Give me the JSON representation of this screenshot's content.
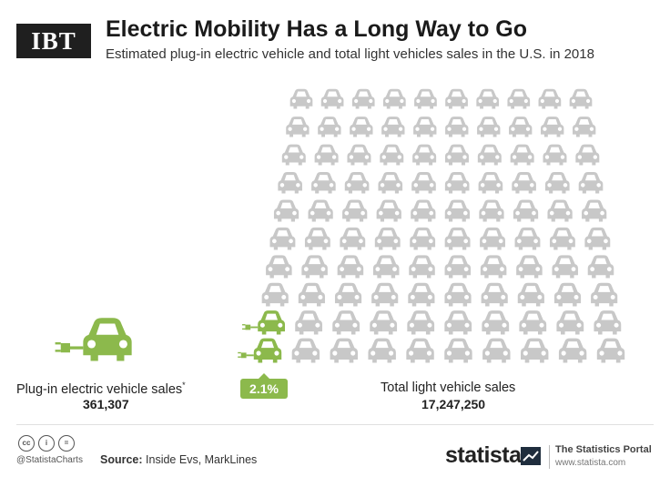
{
  "logo": "IBT",
  "title": "Electric Mobility Has a Long Way to Go",
  "subtitle": "Estimated plug-in electric vehicle and total light vehicles sales in the U.S. in 2018",
  "chart_data": {
    "type": "pictogram",
    "title": "Electric Mobility Has a Long Way to Go",
    "subtitle": "Estimated plug-in electric vehicle and total light vehicles sales in the U.S. in 2018",
    "categories": [
      "Plug-in electric vehicle sales",
      "Total light vehicle sales"
    ],
    "values": [
      361307,
      17247250
    ],
    "ev_share_percent": 2.1,
    "ev_label": "Plug-in electric vehicle sales",
    "ev_value_text": "361,307",
    "total_label": "Total light vehicle sales",
    "total_value_text": "17,247,250",
    "share_text": "2.1%",
    "icon_total": 100,
    "icon_ev": 2,
    "colors": {
      "ev": "#8cb94c",
      "total": "#c8c8c8"
    }
  },
  "footer": {
    "handle": "@StatistaCharts",
    "source_label": "Source:",
    "source_text": "Inside Evs, MarkLines",
    "brand": "statista",
    "portal": "The Statistics Portal",
    "url": "www.statista.com",
    "cc_icons": [
      "cc-icon",
      "by-icon",
      "nd-icon"
    ]
  }
}
